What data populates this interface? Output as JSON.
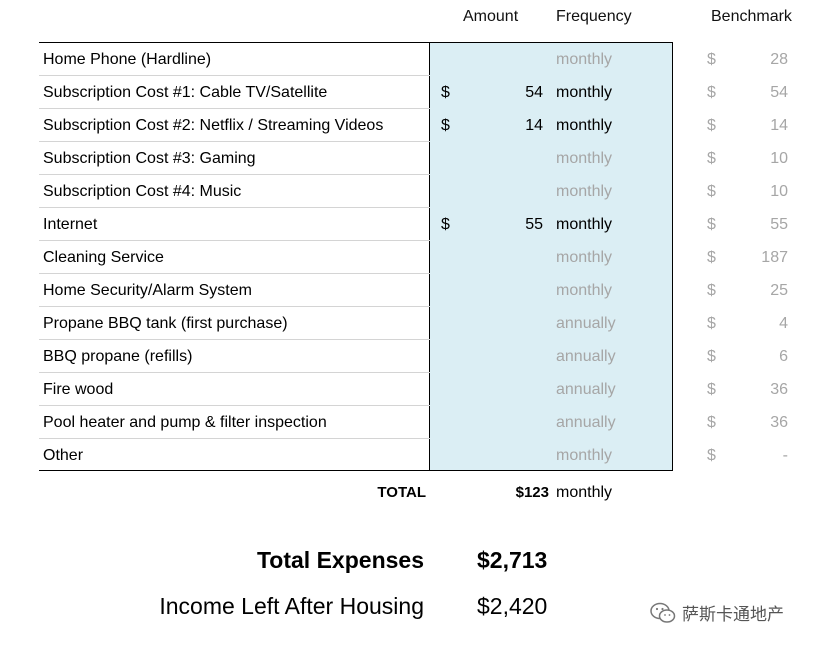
{
  "headers": {
    "amount": "Amount",
    "frequency": "Frequency",
    "benchmark": "Benchmark"
  },
  "rows": [
    {
      "name": "Home Phone (Hardline)",
      "currency": "",
      "amount": "",
      "frequency": "monthly",
      "bench_currency": "$",
      "benchmark": "28"
    },
    {
      "name": "Subscription Cost #1: Cable TV/Satellite",
      "currency": "$",
      "amount": "54",
      "frequency": "monthly",
      "bench_currency": "$",
      "benchmark": "54"
    },
    {
      "name": "Subscription Cost #2: Netflix / Streaming Videos",
      "currency": "$",
      "amount": "14",
      "frequency": "monthly",
      "bench_currency": "$",
      "benchmark": "14"
    },
    {
      "name": "Subscription Cost #3: Gaming",
      "currency": "",
      "amount": "",
      "frequency": "monthly",
      "bench_currency": "$",
      "benchmark": "10"
    },
    {
      "name": "Subscription Cost #4: Music",
      "currency": "",
      "amount": "",
      "frequency": "monthly",
      "bench_currency": "$",
      "benchmark": "10"
    },
    {
      "name": "Internet",
      "currency": "$",
      "amount": "55",
      "frequency": "monthly",
      "bench_currency": "$",
      "benchmark": "55"
    },
    {
      "name": "Cleaning Service",
      "currency": "",
      "amount": "",
      "frequency": "monthly",
      "bench_currency": "$",
      "benchmark": "187"
    },
    {
      "name": "Home Security/Alarm System",
      "currency": "",
      "amount": "",
      "frequency": "monthly",
      "bench_currency": "$",
      "benchmark": "25"
    },
    {
      "name": "Propane BBQ tank (first purchase)",
      "currency": "",
      "amount": "",
      "frequency": "annually",
      "bench_currency": "$",
      "benchmark": "4"
    },
    {
      "name": "BBQ propane (refills)",
      "currency": "",
      "amount": "",
      "frequency": "annually",
      "bench_currency": "$",
      "benchmark": "6"
    },
    {
      "name": "Fire wood",
      "currency": "",
      "amount": "",
      "frequency": "annually",
      "bench_currency": "$",
      "benchmark": "36"
    },
    {
      "name": "Pool heater and pump & filter inspection",
      "currency": "",
      "amount": "",
      "frequency": "annually",
      "bench_currency": "$",
      "benchmark": "36"
    },
    {
      "name": "Other",
      "currency": "",
      "amount": "",
      "frequency": "monthly",
      "bench_currency": "$",
      "benchmark": "-"
    }
  ],
  "total": {
    "label": "TOTAL",
    "value": "$123",
    "frequency": "monthly"
  },
  "summary": {
    "total_expenses_label": "Total Expenses",
    "total_expenses_value": "$2,713",
    "income_left_label": "Income Left After Housing",
    "income_left_value": "$2,420"
  },
  "watermark": {
    "text": "萨斯卡通地产",
    "icon": "wechat-icon"
  },
  "colors": {
    "input_fill": "#dbeef4",
    "muted_text": "#a6a6a6"
  }
}
